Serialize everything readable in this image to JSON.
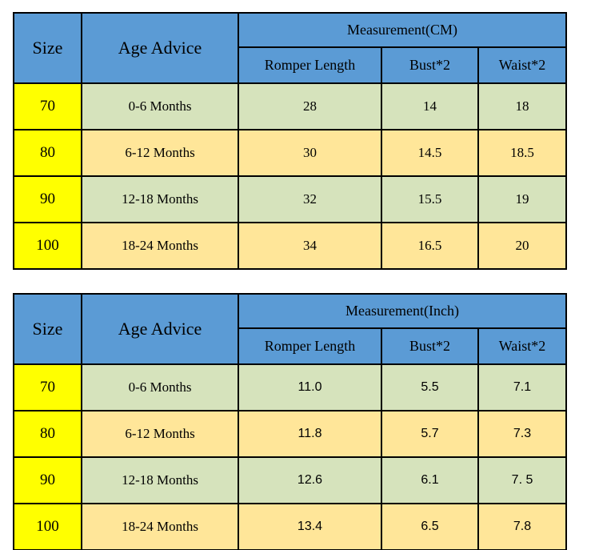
{
  "colors": {
    "header_blue": "#5b9bd5",
    "size_yellow": "#ffff00",
    "row_green": "#d6e3bc",
    "row_tan": "#ffe699",
    "border_black": "#000000",
    "page_background": "#ffffff"
  },
  "chart_data": [
    {
      "type": "table",
      "title": "Measurement(CM)",
      "corner_headers": {
        "size": "Size",
        "age": "Age Advice"
      },
      "sub_headers": [
        "Romper Length",
        "Bust*2",
        "Waist*2"
      ],
      "rows": [
        {
          "size": "70",
          "age": "0-6 Months",
          "values": [
            "28",
            "14",
            "18"
          ]
        },
        {
          "size": "80",
          "age": "6-12 Months",
          "values": [
            "30",
            "14.5",
            "18.5"
          ]
        },
        {
          "size": "90",
          "age": "12-18 Months",
          "values": [
            "32",
            "15.5",
            "19"
          ]
        },
        {
          "size": "100",
          "age": "18-24 Months",
          "values": [
            "34",
            "16.5",
            "20"
          ]
        }
      ]
    },
    {
      "type": "table",
      "title": "Measurement(Inch)",
      "corner_headers": {
        "size": "Size",
        "age": "Age Advice"
      },
      "sub_headers": [
        "Romper Length",
        "Bust*2",
        "Waist*2"
      ],
      "rows": [
        {
          "size": "70",
          "age": "0-6 Months",
          "values": [
            "11.0",
            "5.5",
            "7.1"
          ]
        },
        {
          "size": "80",
          "age": "6-12 Months",
          "values": [
            "11.8",
            "5.7",
            "7.3"
          ]
        },
        {
          "size": "90",
          "age": "12-18 Months",
          "values": [
            "12.6",
            "6.1",
            "7. 5"
          ]
        },
        {
          "size": "100",
          "age": "18-24 Months",
          "values": [
            "13.4",
            "6.5",
            "7.8"
          ]
        }
      ]
    }
  ]
}
